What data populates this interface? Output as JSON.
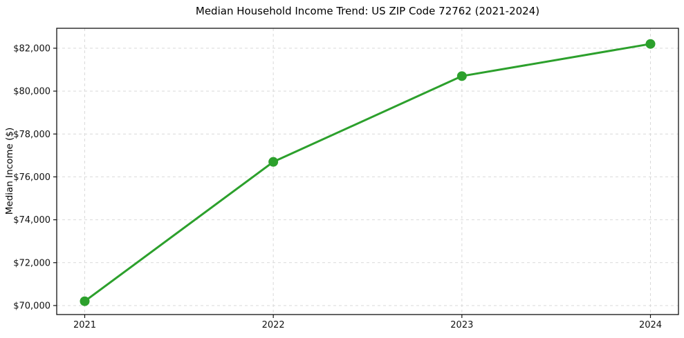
{
  "chart_data": {
    "type": "line",
    "title": "Median Household Income Trend: US ZIP Code 72762 (2021-2024)",
    "xlabel": "",
    "ylabel": "Median Income ($)",
    "categories": [
      "2021",
      "2022",
      "2023",
      "2024"
    ],
    "values": [
      70200,
      76700,
      80700,
      82200
    ],
    "x_tick_labels": [
      "2021",
      "2022",
      "2023",
      "2024"
    ],
    "y_ticks": {
      "values": [
        70000,
        72000,
        74000,
        76000,
        78000,
        80000,
        82000
      ],
      "labels": [
        "$70,000",
        "$72,000",
        "$74,000",
        "$76,000",
        "$78,000",
        "$80,000",
        "$82,000"
      ]
    },
    "ylim": [
      69580,
      82930
    ],
    "grid": true,
    "grid_style": "dashed",
    "legend_position": "none",
    "line_color": "#2ca02c",
    "marker": "circle",
    "grid_color": "#d9d9d9",
    "spine_color": "#111111",
    "background_color": "#ffffff"
  }
}
